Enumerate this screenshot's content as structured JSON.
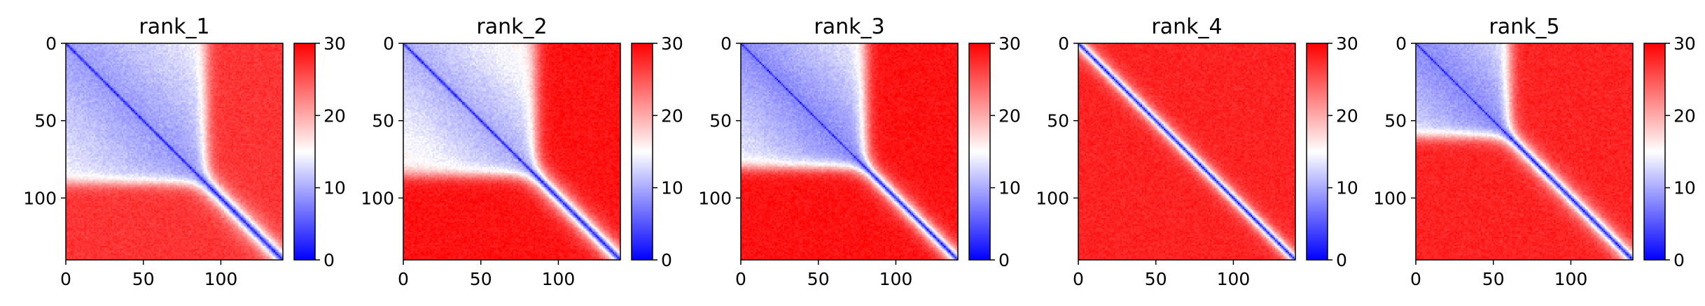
{
  "chart_data": [
    {
      "type": "heatmap",
      "title": "rank_1",
      "x_ticks": [
        "0",
        "50",
        "100"
      ],
      "y_ticks": [
        "0",
        "50",
        "100"
      ],
      "matrix_size": 140,
      "colormap": "bwr",
      "color_low": "#0000ff",
      "color_mid": "#ffffff",
      "color_high": "#ff0000",
      "colorbar": {
        "range": [
          0,
          30
        ],
        "ticks": [
          "0",
          "10",
          "20",
          "30"
        ]
      },
      "pattern": {
        "diag_band": 6,
        "block_end": 90,
        "block_value": 9,
        "block_edge": 12,
        "far_value": 27
      }
    },
    {
      "type": "heatmap",
      "title": "rank_2",
      "x_ticks": [
        "0",
        "50",
        "100"
      ],
      "y_ticks": [
        "0",
        "50",
        "100"
      ],
      "matrix_size": 140,
      "colormap": "bwr",
      "color_low": "#0000ff",
      "color_mid": "#ffffff",
      "color_high": "#ff0000",
      "colorbar": {
        "range": [
          0,
          30
        ],
        "ticks": [
          "0",
          "10",
          "20",
          "30"
        ]
      },
      "pattern": {
        "diag_band": 6,
        "block_end": 85,
        "block_value": 11,
        "block_edge": 10,
        "far_value": 29
      }
    },
    {
      "type": "heatmap",
      "title": "rank_3",
      "x_ticks": [
        "0",
        "50",
        "100"
      ],
      "y_ticks": [
        "0",
        "50",
        "100"
      ],
      "matrix_size": 140,
      "colormap": "bwr",
      "color_low": "#0000ff",
      "color_mid": "#ffffff",
      "color_high": "#ff0000",
      "colorbar": {
        "range": [
          0,
          30
        ],
        "ticks": [
          "0",
          "10",
          "20",
          "30"
        ]
      },
      "pattern": {
        "diag_band": 5,
        "block_end": 80,
        "block_value": 13,
        "block_edge": 8,
        "far_value": 29
      }
    },
    {
      "type": "heatmap",
      "title": "rank_4",
      "x_ticks": [
        "0",
        "50",
        "100"
      ],
      "y_ticks": [
        "0",
        "50",
        "100"
      ],
      "matrix_size": 140,
      "colormap": "bwr",
      "color_low": "#0000ff",
      "color_mid": "#ffffff",
      "color_high": "#ff0000",
      "colorbar": {
        "range": [
          0,
          30
        ],
        "ticks": [
          "0",
          "10",
          "20",
          "30"
        ]
      },
      "pattern": {
        "diag_band": 4,
        "block_end": 0,
        "block_value": 18,
        "block_edge": 6,
        "far_value": 28
      }
    },
    {
      "type": "heatmap",
      "title": "rank_5",
      "x_ticks": [
        "0",
        "50",
        "100"
      ],
      "y_ticks": [
        "0",
        "50",
        "100"
      ],
      "matrix_size": 140,
      "colormap": "bwr",
      "color_low": "#0000ff",
      "color_mid": "#ffffff",
      "color_high": "#ff0000",
      "colorbar": {
        "range": [
          0,
          30
        ],
        "ticks": [
          "0",
          "10",
          "20",
          "30"
        ]
      },
      "pattern": {
        "diag_band": 5,
        "block_end": 60,
        "block_value": 12,
        "block_edge": 8,
        "far_value": 28
      }
    }
  ]
}
